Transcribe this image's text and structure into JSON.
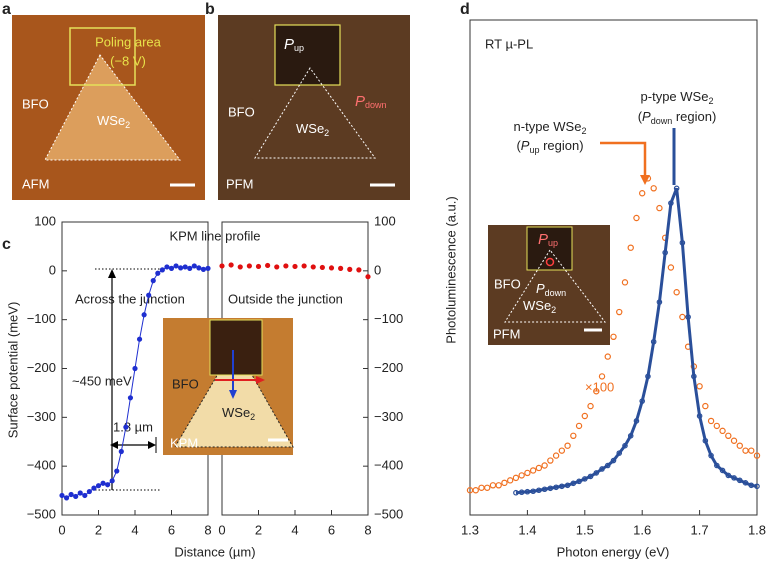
{
  "panel_a": {
    "label": "a",
    "poling_area": "Poling area",
    "voltage": "(−8 V)",
    "bfo": "BFO",
    "wse": "WSe",
    "wse_sub": "2",
    "mode": "AFM"
  },
  "panel_b": {
    "label": "b",
    "p": "P",
    "up": "up",
    "down": "down",
    "bfo": "BFO",
    "wse": "WSe",
    "wse_sub": "2",
    "mode": "PFM"
  },
  "panel_c": {
    "label": "c",
    "across": "Across the junction",
    "outside": "Outside the junction",
    "delta": "~450 meV",
    "width": "1.8 µm",
    "inset_bfo": "BFO",
    "inset_wse": "WSe",
    "inset_wse_sub": "2",
    "inset_mode": "KPM"
  },
  "panel_d": {
    "label": "d",
    "p_type": "p-type WSe",
    "n_type": "n-type WSe",
    "wse_sub": "2",
    "open": "(",
    "p": "P",
    "up": "up",
    "down": "down",
    "region": " region)",
    "scale": "×100",
    "inset_bfo": "BFO",
    "inset_wse": "WSe",
    "inset_mode": "PFM"
  },
  "chart_data": [
    {
      "type": "scatter",
      "title": "KPM line profile",
      "xlabel": "Distance (µm)",
      "ylabel": "Surface potential (meV)",
      "color": "#1f2fd0",
      "xlim": [
        0,
        8
      ],
      "xticks": [
        0,
        2,
        4,
        6,
        8
      ],
      "ylim": [
        -500,
        100
      ],
      "yticks": [
        {
          "value": -500,
          "label": "−500"
        },
        {
          "value": -400,
          "label": "−400"
        },
        {
          "value": -300,
          "label": "−300"
        },
        {
          "value": -200,
          "label": "−200"
        },
        {
          "value": -100,
          "label": "−100"
        },
        0,
        100
      ],
      "x": [
        0,
        0.25,
        0.5,
        0.75,
        1,
        1.25,
        1.5,
        1.75,
        2,
        2.25,
        2.5,
        2.75,
        3,
        3.25,
        3.5,
        3.75,
        4,
        4.25,
        4.5,
        4.75,
        5,
        5.25,
        5.5,
        5.75,
        6,
        6.25,
        6.5,
        6.75,
        7,
        7.25,
        7.5,
        7.75,
        8
      ],
      "values": [
        -460,
        -465,
        -458,
        -462,
        -455,
        -460,
        -452,
        -445,
        -440,
        -435,
        -438,
        -430,
        -410,
        -370,
        -320,
        -260,
        -200,
        -140,
        -90,
        -50,
        -20,
        -5,
        2,
        8,
        5,
        10,
        6,
        8,
        5,
        10,
        6,
        3,
        5
      ]
    },
    {
      "type": "scatter",
      "color": "#e01010",
      "xlim": [
        0,
        8
      ],
      "xticks": [
        0,
        2,
        4,
        6,
        8
      ],
      "ylim": [
        -500,
        100
      ],
      "yticks": [
        {
          "value": -500,
          "label": "−500"
        },
        {
          "value": -400,
          "label": "−400"
        },
        {
          "value": -300,
          "label": "−300"
        },
        {
          "value": -200,
          "label": "−200"
        },
        {
          "value": -100,
          "label": "−100"
        },
        0,
        100
      ],
      "x": [
        0,
        0.5,
        1,
        1.5,
        2,
        2.5,
        3,
        3.5,
        4,
        4.5,
        5,
        5.5,
        6,
        6.5,
        7,
        7.5,
        8
      ],
      "values": [
        10,
        12,
        8,
        10,
        9,
        11,
        8,
        10,
        9,
        10,
        8,
        7,
        6,
        5,
        3,
        2,
        -12
      ]
    },
    {
      "type": "scatter",
      "title": "RT µ-PL",
      "xlabel": "Photon energy (eV)",
      "ylabel": "Photoluminescence (a.u.)",
      "xlim": [
        1.3,
        1.8
      ],
      "xticks": [
        1.3,
        1.4,
        1.5,
        1.6,
        1.7,
        1.8
      ],
      "ylim": [
        0,
        1
      ],
      "series": [
        {
          "color": "#f07020",
          "x": [
            1.3,
            1.31,
            1.32,
            1.33,
            1.34,
            1.35,
            1.36,
            1.37,
            1.38,
            1.39,
            1.4,
            1.41,
            1.42,
            1.43,
            1.44,
            1.45,
            1.46,
            1.47,
            1.48,
            1.49,
            1.5,
            1.51,
            1.52,
            1.53,
            1.54,
            1.55,
            1.56,
            1.57,
            1.58,
            1.59,
            1.6,
            1.61,
            1.62,
            1.63,
            1.64,
            1.65,
            1.66,
            1.67,
            1.68,
            1.69,
            1.7,
            1.71,
            1.72,
            1.73,
            1.74,
            1.75,
            1.76,
            1.77,
            1.78,
            1.79,
            1.8
          ],
          "values": [
            0.05,
            0.05,
            0.055,
            0.055,
            0.06,
            0.06,
            0.065,
            0.07,
            0.075,
            0.08,
            0.085,
            0.09,
            0.095,
            0.1,
            0.11,
            0.12,
            0.13,
            0.14,
            0.16,
            0.18,
            0.2,
            0.22,
            0.25,
            0.28,
            0.32,
            0.36,
            0.41,
            0.47,
            0.54,
            0.6,
            0.65,
            0.68,
            0.66,
            0.62,
            0.56,
            0.5,
            0.45,
            0.4,
            0.34,
            0.3,
            0.26,
            0.22,
            0.19,
            0.18,
            0.17,
            0.16,
            0.15,
            0.14,
            0.13,
            0.13,
            0.12
          ]
        },
        {
          "color": "#2a4f9a",
          "x": [
            1.38,
            1.39,
            1.4,
            1.41,
            1.42,
            1.43,
            1.44,
            1.45,
            1.46,
            1.47,
            1.48,
            1.49,
            1.5,
            1.51,
            1.52,
            1.53,
            1.54,
            1.55,
            1.56,
            1.57,
            1.58,
            1.59,
            1.6,
            1.61,
            1.62,
            1.63,
            1.64,
            1.65,
            1.66,
            1.67,
            1.68,
            1.69,
            1.7,
            1.71,
            1.72,
            1.73,
            1.74,
            1.75,
            1.76,
            1.77,
            1.78,
            1.79,
            1.8
          ],
          "values": [
            0.045,
            0.046,
            0.047,
            0.048,
            0.05,
            0.052,
            0.054,
            0.056,
            0.058,
            0.06,
            0.064,
            0.068,
            0.073,
            0.078,
            0.085,
            0.093,
            0.1,
            0.11,
            0.125,
            0.14,
            0.16,
            0.19,
            0.23,
            0.28,
            0.35,
            0.43,
            0.53,
            0.63,
            0.66,
            0.55,
            0.4,
            0.28,
            0.2,
            0.15,
            0.12,
            0.1,
            0.09,
            0.08,
            0.075,
            0.07,
            0.065,
            0.06,
            0.058
          ]
        }
      ]
    }
  ]
}
